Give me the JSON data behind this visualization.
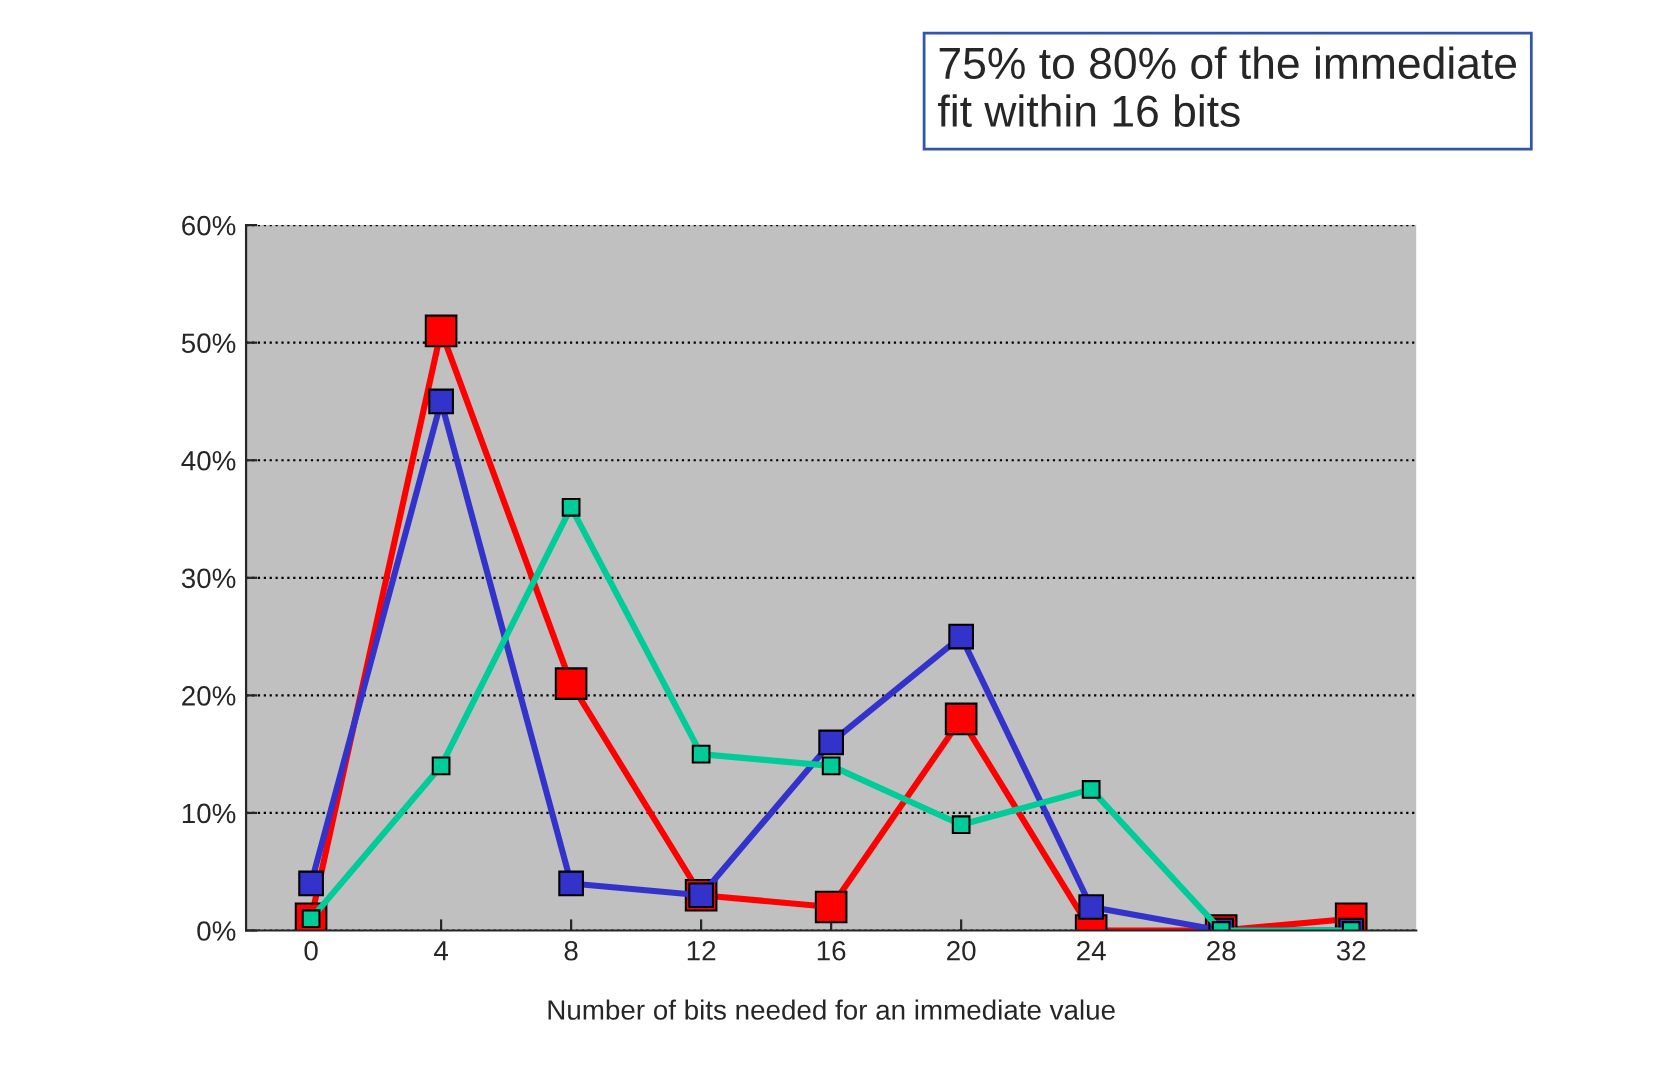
{
  "chart_data": {
    "type": "line",
    "xlabel": "Number of bits needed for an immediate value",
    "x": [
      0,
      4,
      8,
      12,
      16,
      20,
      24,
      28,
      32
    ],
    "xlim": [
      -2,
      34
    ],
    "xticks": [
      0,
      4,
      8,
      12,
      16,
      20,
      24,
      28,
      32
    ],
    "ylim": [
      0,
      60
    ],
    "yticks": [
      {
        "value": 0,
        "label": "0%"
      },
      {
        "value": 10,
        "label": "10%"
      },
      {
        "value": 20,
        "label": "20%"
      },
      {
        "value": 30,
        "label": "30%"
      },
      {
        "value": 40,
        "label": "40%"
      },
      {
        "value": 50,
        "label": "50%"
      },
      {
        "value": 60,
        "label": "60%"
      }
    ],
    "series": [
      {
        "color": "#ff0000",
        "values": [
          1,
          51,
          21,
          3,
          2,
          18,
          0,
          0,
          1
        ]
      },
      {
        "color": "#3333cc",
        "values": [
          4,
          45,
          4,
          3,
          16,
          25,
          2,
          0,
          0
        ]
      },
      {
        "color": "#00cc99",
        "values": [
          1,
          14,
          36,
          15,
          14,
          9,
          12,
          0,
          0
        ]
      }
    ],
    "marker": "square",
    "line_style": "solid",
    "grid": "y",
    "annotations": [
      "75% to 80% of the immediate\nfit within 16 bits"
    ]
  }
}
